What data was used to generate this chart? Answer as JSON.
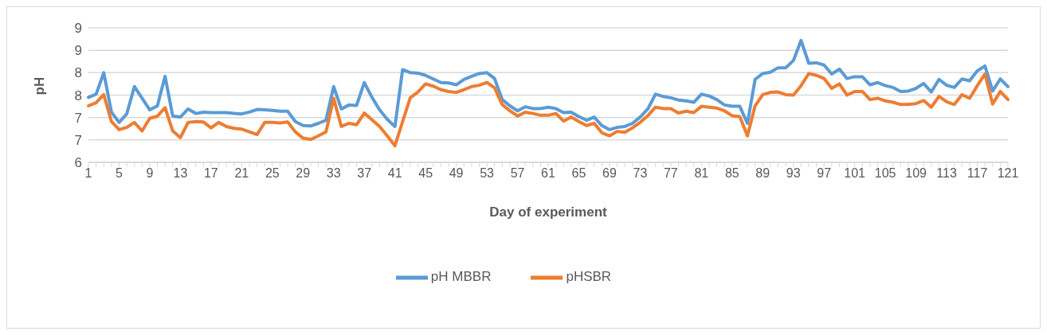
{
  "chart_data": {
    "type": "line",
    "xlabel": "Day of experiment",
    "ylabel": "pH",
    "categories": [
      "1",
      null,
      null,
      null,
      "5",
      null,
      null,
      null,
      "9",
      null,
      null,
      null,
      "13",
      null,
      null,
      null,
      "17",
      null,
      null,
      null,
      "21",
      null,
      null,
      null,
      "25",
      null,
      null,
      null,
      "29",
      null,
      null,
      null,
      "33",
      null,
      null,
      null,
      "37",
      null,
      null,
      null,
      "41",
      null,
      null,
      null,
      "45",
      null,
      null,
      null,
      "49",
      null,
      null,
      null,
      "53",
      null,
      null,
      null,
      "57",
      null,
      null,
      null,
      "61",
      null,
      null,
      null,
      "65",
      null,
      null,
      null,
      "69",
      null,
      null,
      null,
      "73",
      null,
      null,
      null,
      "77",
      null,
      null,
      null,
      "81",
      null,
      null,
      null,
      "85",
      null,
      null,
      null,
      "89",
      null,
      null,
      null,
      "93",
      null,
      null,
      null,
      "97",
      null,
      null,
      null,
      "101",
      null,
      null,
      null,
      "105",
      null,
      null,
      null,
      "109",
      null,
      null,
      null,
      "113",
      null,
      null,
      null,
      "117",
      null,
      null,
      null,
      "121"
    ],
    "series": [
      {
        "name": "pH MBBR",
        "color": "#5b9bd5",
        "values": [
          7.45,
          7.52,
          8.0,
          7.12,
          6.89,
          7.08,
          7.69,
          7.43,
          7.17,
          7.26,
          7.92,
          7.03,
          7.01,
          7.19,
          7.09,
          7.12,
          7.11,
          7.11,
          7.11,
          7.09,
          7.08,
          7.12,
          7.18,
          7.17,
          7.16,
          7.14,
          7.14,
          6.91,
          6.82,
          6.81,
          6.87,
          6.94,
          7.69,
          7.19,
          7.28,
          7.27,
          7.78,
          7.45,
          7.17,
          6.96,
          6.8,
          8.07,
          8.0,
          7.99,
          7.94,
          7.86,
          7.78,
          7.77,
          7.73,
          7.85,
          7.92,
          7.98,
          8.0,
          7.87,
          7.4,
          7.26,
          7.15,
          7.24,
          7.2,
          7.2,
          7.23,
          7.2,
          7.11,
          7.12,
          7.02,
          6.94,
          7.01,
          6.82,
          6.73,
          6.78,
          6.8,
          6.87,
          7.01,
          7.19,
          7.52,
          7.47,
          7.44,
          7.39,
          7.37,
          7.34,
          7.52,
          7.48,
          7.4,
          7.28,
          7.25,
          7.25,
          6.87,
          7.85,
          7.98,
          8.01,
          8.11,
          8.11,
          8.27,
          8.72,
          8.21,
          8.22,
          8.17,
          7.97,
          8.08,
          7.87,
          7.91,
          7.91,
          7.73,
          7.78,
          7.71,
          7.67,
          7.58,
          7.59,
          7.65,
          7.76,
          7.57,
          7.85,
          7.72,
          7.67,
          7.86,
          7.82,
          8.04,
          8.15,
          7.59,
          7.86,
          7.69
        ]
      },
      {
        "name": "pHSBR",
        "color": "#ed7d31",
        "values": [
          7.26,
          7.33,
          7.51,
          6.91,
          6.73,
          6.78,
          6.89,
          6.7,
          6.98,
          7.03,
          7.22,
          6.7,
          6.55,
          6.89,
          6.91,
          6.9,
          6.77,
          6.89,
          6.8,
          6.76,
          6.74,
          6.68,
          6.62,
          6.89,
          6.89,
          6.88,
          6.9,
          6.68,
          6.54,
          6.51,
          6.59,
          6.68,
          7.43,
          6.8,
          6.87,
          6.84,
          7.1,
          6.95,
          6.8,
          6.59,
          6.37,
          6.91,
          7.44,
          7.57,
          7.75,
          7.7,
          7.62,
          7.58,
          7.56,
          7.62,
          7.69,
          7.72,
          7.78,
          7.66,
          7.29,
          7.15,
          7.03,
          7.12,
          7.09,
          7.05,
          7.05,
          7.09,
          6.92,
          7.01,
          6.91,
          6.82,
          6.87,
          6.66,
          6.59,
          6.69,
          6.67,
          6.77,
          6.89,
          7.04,
          7.23,
          7.2,
          7.2,
          7.1,
          7.14,
          7.11,
          7.25,
          7.23,
          7.21,
          7.15,
          7.04,
          7.02,
          6.59,
          7.26,
          7.51,
          7.56,
          7.57,
          7.51,
          7.5,
          7.71,
          7.98,
          7.94,
          7.87,
          7.65,
          7.75,
          7.5,
          7.58,
          7.58,
          7.4,
          7.43,
          7.37,
          7.34,
          7.29,
          7.29,
          7.31,
          7.38,
          7.23,
          7.47,
          7.35,
          7.29,
          7.51,
          7.43,
          7.71,
          7.97,
          7.3,
          7.58,
          7.4
        ]
      }
    ],
    "ylim": [
      6,
      9
    ],
    "yticks": [
      6,
      {
        "value": 6.5,
        "label": "7"
      },
      7,
      {
        "value": 7.5,
        "label": "8"
      },
      8,
      {
        "value": 8.5,
        "label": "9"
      },
      9
    ],
    "grid": "y",
    "legend": "bottom",
    "line_style": "solid"
  }
}
